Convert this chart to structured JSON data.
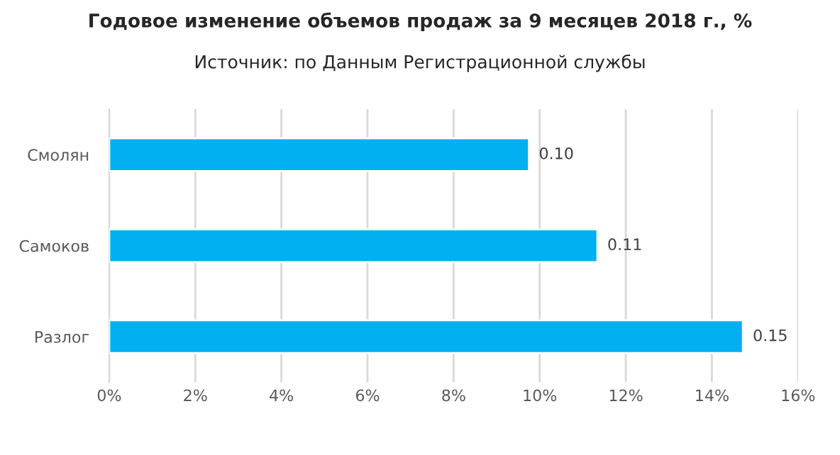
{
  "chart_data": {
    "type": "bar",
    "orientation": "horizontal",
    "title": "Годовое изменение объемов продаж за 9 месяцев 2018 г., %",
    "subtitle": "Источник: по Данным Регистрационной службы",
    "categories": [
      "Смолян",
      "Самоков",
      "Разлог"
    ],
    "values": [
      0.0975,
      0.1134,
      0.1472
    ],
    "value_labels": [
      "0.10",
      "0.11",
      "0.15"
    ],
    "color": "#00b0f0",
    "xlim": [
      0,
      0.16
    ],
    "xticks": [
      {
        "value": 0,
        "label": "0%"
      },
      {
        "value": 0.02,
        "label": "2%"
      },
      {
        "value": 0.04,
        "label": "4%"
      },
      {
        "value": 0.06,
        "label": "6%"
      },
      {
        "value": 0.08,
        "label": "8%"
      },
      {
        "value": 0.1,
        "label": "10%"
      },
      {
        "value": 0.12,
        "label": "12%"
      },
      {
        "value": 0.14,
        "label": "14%"
      },
      {
        "value": 0.16,
        "label": "16%"
      }
    ],
    "grid": "x"
  }
}
